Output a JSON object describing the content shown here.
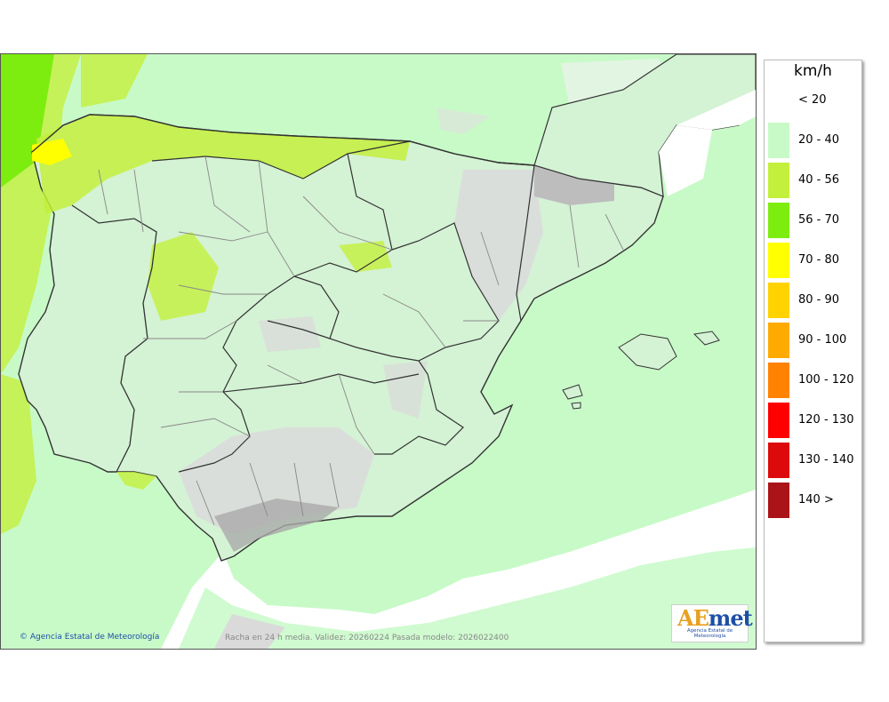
{
  "legend": {
    "unit": "km/h",
    "items": [
      {
        "label": "< 20",
        "color": "#ffffff"
      },
      {
        "label": "20 - 40",
        "color": "#c8fac8"
      },
      {
        "label": "40 - 56",
        "color": "#c3f03c"
      },
      {
        "label": "56 - 70",
        "color": "#7ded0f"
      },
      {
        "label": "70 - 80",
        "color": "#ffff00"
      },
      {
        "label": "80 - 90",
        "color": "#ffd200"
      },
      {
        "label": "90 - 100",
        "color": "#ffaa00"
      },
      {
        "label": "100 - 120",
        "color": "#ff8200"
      },
      {
        "label": "120 - 130",
        "color": "#ff0000"
      },
      {
        "label": "130 - 140",
        "color": "#dc0a0a"
      },
      {
        "label": "140 >",
        "color": "#aa1419"
      }
    ]
  },
  "footer": {
    "credit": "Agencia Estatal de Meteorología",
    "validity": "Racha en 24 h media. Validez: 20260224 Pasada modelo: 2026022400"
  },
  "logo": {
    "text_a": "AE",
    "text_b": "met",
    "subtitle": "Agencia Estatal de Meteorología"
  },
  "colors": {
    "sea_low": "#c8fac8",
    "land": "#d4f2d4",
    "relief": "#dadada",
    "band_40_56": "#c3f03c",
    "band_56_70": "#7ded0f",
    "band_70_80": "#ffff00",
    "border": "#333333",
    "province": "#888888"
  }
}
